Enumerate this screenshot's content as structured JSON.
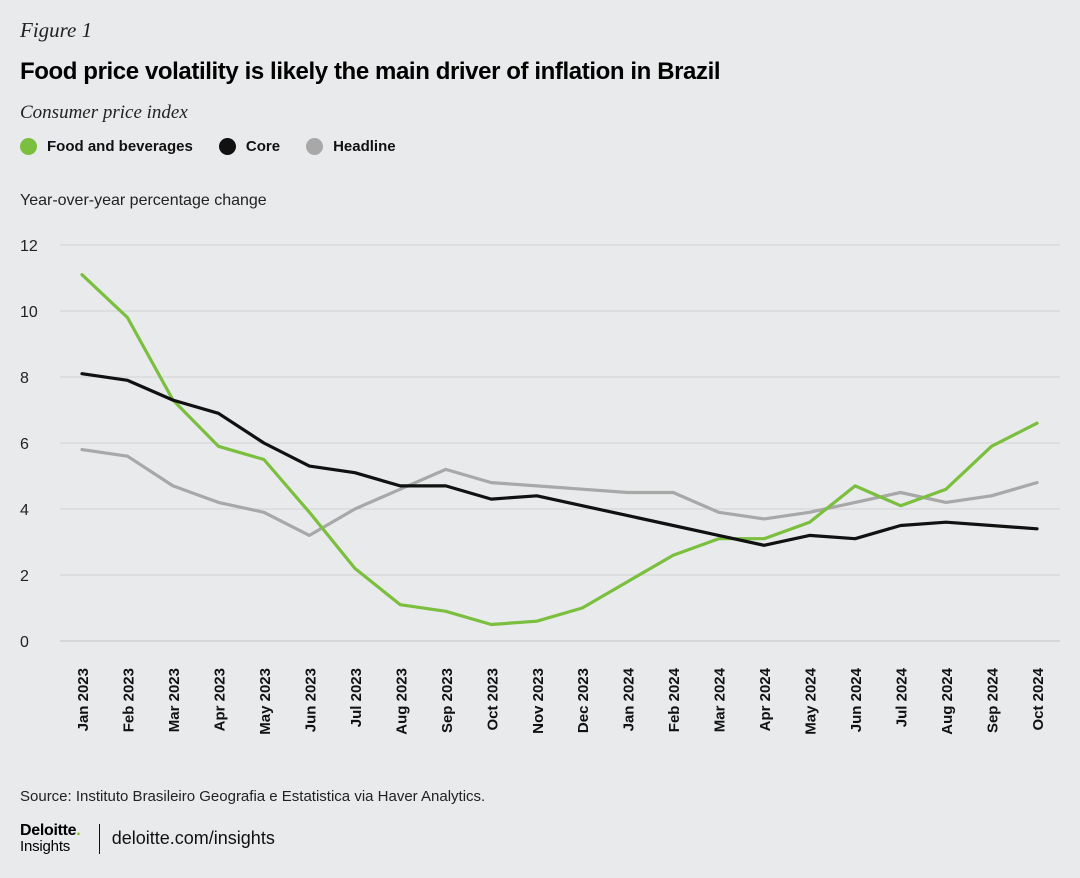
{
  "figure_label": "Figure 1",
  "title": "Food price volatility is likely the main driver of inflation in Brazil",
  "subtitle": "Consumer price index",
  "ylabel": "Year-over-year percentage change",
  "source": "Source: Instituto Brasileiro Geografia e Estatistica via Haver Analytics.",
  "footer": {
    "brand": "Deloitte",
    "brand_dot": ".",
    "brand_sub": "Insights",
    "site": "deloitte.com/insights"
  },
  "colors": {
    "food": "#7bbf3f",
    "core": "#111111",
    "headline": "#a8a8a8",
    "grid": "#cfd1d3",
    "background": "#e9eaeb"
  },
  "chart_data": {
    "type": "line",
    "categories": [
      "Jan 2023",
      "Feb 2023",
      "Mar 2023",
      "Apr 2023",
      "May 2023",
      "Jun 2023",
      "Jul 2023",
      "Aug 2023",
      "Sep 2023",
      "Oct 2023",
      "Nov 2023",
      "Dec 2023",
      "Jan 2024",
      "Feb 2024",
      "Mar 2024",
      "Apr 2024",
      "May 2024",
      "Jun 2024",
      "Jul 2024",
      "Aug 2024",
      "Sep 2024",
      "Oct 2024"
    ],
    "ylim": [
      0,
      12
    ],
    "yticks": [
      0,
      2,
      4,
      6,
      8,
      10,
      12
    ],
    "grid": true,
    "legend_placement": "top-left",
    "series": [
      {
        "name": "Food and beverages",
        "key": "food",
        "values": [
          11.1,
          9.8,
          7.3,
          5.9,
          5.5,
          3.9,
          2.2,
          1.1,
          0.9,
          0.5,
          0.6,
          1.0,
          1.8,
          2.6,
          3.1,
          3.1,
          3.6,
          4.7,
          4.1,
          4.6,
          5.9,
          6.6
        ]
      },
      {
        "name": "Core",
        "key": "core",
        "values": [
          8.1,
          7.9,
          7.3,
          6.9,
          6.0,
          5.3,
          5.1,
          4.7,
          4.7,
          4.3,
          4.4,
          4.1,
          3.8,
          3.5,
          3.2,
          2.9,
          3.2,
          3.1,
          3.5,
          3.6,
          3.5,
          3.4
        ]
      },
      {
        "name": "Headline",
        "key": "headline",
        "values": [
          5.8,
          5.6,
          4.7,
          4.2,
          3.9,
          3.2,
          4.0,
          4.6,
          5.2,
          4.8,
          4.7,
          4.6,
          4.5,
          4.5,
          3.9,
          3.7,
          3.9,
          4.2,
          4.5,
          4.2,
          4.4,
          4.8
        ]
      }
    ]
  }
}
